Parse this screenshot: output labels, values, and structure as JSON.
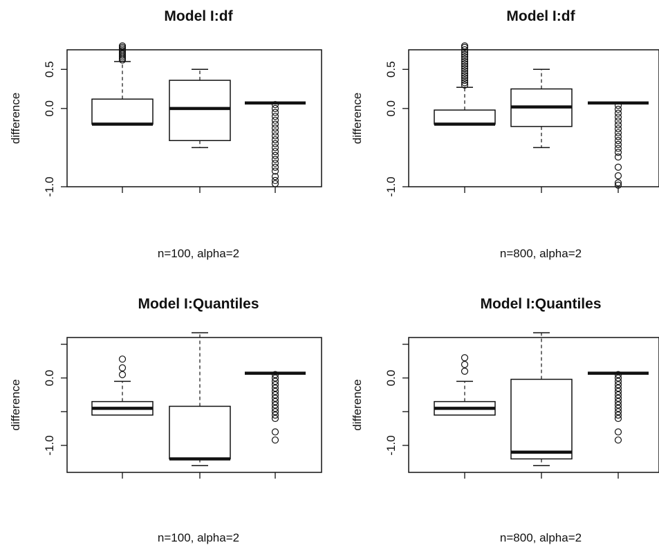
{
  "chart_data": [
    {
      "type": "box",
      "title": "Model I:df",
      "xlabel": "n=100, alpha=2",
      "ylabel": "difference",
      "ylim": [
        -1.0,
        0.75
      ],
      "yticks": [
        0.5,
        0.0,
        -1.0
      ],
      "ytick_labels": [
        "0.5",
        "0.0",
        "-1.0"
      ],
      "boxes": [
        {
          "whisker_low": -0.2,
          "q1": -0.2,
          "median": -0.2,
          "q3": 0.12,
          "whisker_high": 0.6,
          "outliers": [
            0.62,
            0.64,
            0.66,
            0.68,
            0.7,
            0.72,
            0.74,
            0.76,
            0.78,
            0.8
          ]
        },
        {
          "whisker_low": -0.5,
          "q1": -0.41,
          "median": 0.0,
          "q3": 0.36,
          "whisker_high": 0.5,
          "outliers": []
        },
        {
          "whisker_low": 0.07,
          "q1": 0.07,
          "median": 0.07,
          "q3": 0.07,
          "whisker_high": 0.07,
          "outliers": [
            0.05,
            0.0,
            -0.05,
            -0.1,
            -0.15,
            -0.2,
            -0.25,
            -0.3,
            -0.35,
            -0.4,
            -0.45,
            -0.5,
            -0.55,
            -0.6,
            -0.65,
            -0.7,
            -0.75,
            -0.8,
            -0.87,
            -0.92,
            -0.96
          ]
        }
      ]
    },
    {
      "type": "box",
      "title": "Model I:df",
      "xlabel": "n=800, alpha=2",
      "ylabel": "difference",
      "ylim": [
        -1.0,
        0.75
      ],
      "yticks": [
        0.5,
        0.0,
        -1.0
      ],
      "ytick_labels": [
        "0.5",
        "0.0",
        "-1.0"
      ],
      "boxes": [
        {
          "whisker_low": -0.2,
          "q1": -0.2,
          "median": -0.2,
          "q3": -0.02,
          "whisker_high": 0.27,
          "outliers": [
            0.3,
            0.33,
            0.36,
            0.39,
            0.42,
            0.45,
            0.48,
            0.51,
            0.54,
            0.57,
            0.6,
            0.63,
            0.66,
            0.69,
            0.72,
            0.75,
            0.78,
            0.8
          ]
        },
        {
          "whisker_low": -0.5,
          "q1": -0.23,
          "median": 0.02,
          "q3": 0.25,
          "whisker_high": 0.5,
          "outliers": []
        },
        {
          "whisker_low": 0.07,
          "q1": 0.07,
          "median": 0.07,
          "q3": 0.07,
          "whisker_high": 0.07,
          "outliers": [
            0.04,
            -0.01,
            -0.06,
            -0.11,
            -0.16,
            -0.21,
            -0.26,
            -0.31,
            -0.36,
            -0.41,
            -0.46,
            -0.51,
            -0.56,
            -0.62,
            -0.75,
            -0.86,
            -0.95,
            -0.98
          ]
        }
      ]
    },
    {
      "type": "box",
      "title": "Model I:Quantiles",
      "xlabel": "n=100, alpha=2",
      "ylabel": "difference",
      "ylim": [
        -1.4,
        0.6
      ],
      "yticks": [
        0.0,
        -1.0
      ],
      "ytick_labels": [
        "0.0",
        "-1.0"
      ],
      "minor_yticks": [
        0.5,
        -0.5
      ],
      "boxes": [
        {
          "whisker_low": -0.55,
          "q1": -0.55,
          "median": -0.45,
          "q3": -0.35,
          "whisker_high": -0.05,
          "outliers": [
            0.05,
            0.15,
            0.28
          ]
        },
        {
          "whisker_low": -1.3,
          "q1": -1.2,
          "median": -1.2,
          "q3": -0.42,
          "whisker_high": 0.67,
          "outliers": []
        },
        {
          "whisker_low": 0.07,
          "q1": 0.07,
          "median": 0.07,
          "q3": 0.07,
          "whisker_high": 0.07,
          "outliers": [
            0.05,
            0.0,
            -0.05,
            -0.1,
            -0.15,
            -0.2,
            -0.25,
            -0.3,
            -0.35,
            -0.4,
            -0.45,
            -0.5,
            -0.55,
            -0.6,
            -0.8,
            -0.92
          ]
        }
      ]
    },
    {
      "type": "box",
      "title": "Model I:Quantiles",
      "xlabel": "n=800, alpha=2",
      "ylabel": "difference",
      "ylim": [
        -1.4,
        0.6
      ],
      "yticks": [
        0.0,
        -1.0
      ],
      "ytick_labels": [
        "0.0",
        "-1.0"
      ],
      "minor_yticks": [
        0.5,
        -0.5
      ],
      "boxes": [
        {
          "whisker_low": -0.55,
          "q1": -0.55,
          "median": -0.45,
          "q3": -0.35,
          "whisker_high": -0.05,
          "outliers": [
            0.1,
            0.2,
            0.3
          ]
        },
        {
          "whisker_low": -1.3,
          "q1": -1.2,
          "median": -1.1,
          "q3": -0.02,
          "whisker_high": 0.67,
          "outliers": []
        },
        {
          "whisker_low": 0.07,
          "q1": 0.07,
          "median": 0.07,
          "q3": 0.07,
          "whisker_high": 0.07,
          "outliers": [
            0.05,
            0.0,
            -0.05,
            -0.1,
            -0.15,
            -0.2,
            -0.25,
            -0.3,
            -0.35,
            -0.4,
            -0.45,
            -0.5,
            -0.55,
            -0.6,
            -0.8,
            -0.92
          ]
        }
      ]
    }
  ]
}
